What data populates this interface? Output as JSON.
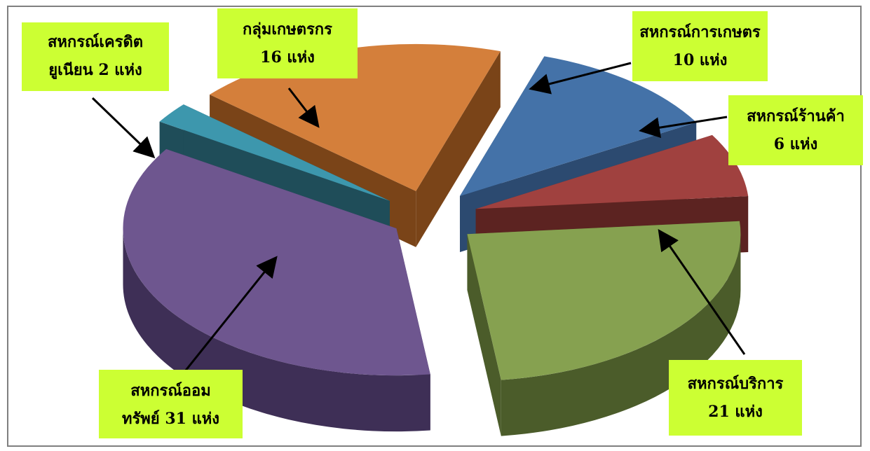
{
  "chart_data": {
    "type": "pie",
    "style": "3d-exploded",
    "unit": "แห่ง",
    "slices": [
      {
        "label": "สหกรณ์การเกษตร",
        "value": 10,
        "color": "#4472a8",
        "side": "#2c4a70"
      },
      {
        "label": "สหกรณ์ร้านค้า",
        "value": 6,
        "color": "#a0413f",
        "side": "#5c2321"
      },
      {
        "label": "สหกรณ์บริการ",
        "value": 21,
        "color": "#86a150",
        "side": "#4b5c2a"
      },
      {
        "label": "สหกรณ์ออมทรัพย์",
        "value": 31,
        "color": "#6e568f",
        "side": "#3e2f56"
      },
      {
        "label": "สหกรณ์เครดิตยูเนียน",
        "value": 2,
        "color": "#3d97ad",
        "side": "#1f4d59"
      },
      {
        "label": "กลุ่มเกษตรกร",
        "value": 16,
        "color": "#d47f3b",
        "side": "#7a4418"
      }
    ],
    "labels": {
      "kaset": [
        "สหกรณ์การเกษตร",
        "10 แห่ง"
      ],
      "rankha": [
        "สหกรณ์ร้านค้า",
        "6 แห่ง"
      ],
      "borikan": [
        "สหกรณ์บริการ",
        "21 แห่ง"
      ],
      "omsap": [
        "สหกรณ์ออม",
        "ทรัพย์  31 แห่ง"
      ],
      "credit": [
        "สหกรณ์เครดิต",
        "ยูเนียน 2 แห่ง"
      ],
      "klum": [
        "กลุ่มเกษตรกร",
        "16 แห่ง"
      ]
    }
  }
}
